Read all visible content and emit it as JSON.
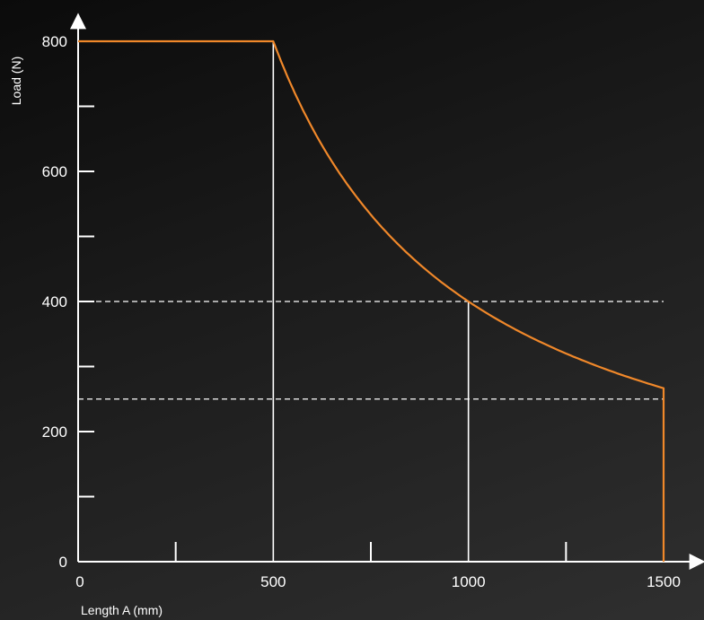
{
  "chart_data": {
    "type": "line",
    "title": "",
    "xlabel": "Length A (mm)",
    "ylabel": "Load (N)",
    "xlim": [
      0,
      1500
    ],
    "ylim": [
      0,
      800
    ],
    "x_ticks": [
      "0",
      "500",
      "1000",
      "1500"
    ],
    "y_ticks": [
      "0",
      "200",
      "400",
      "600",
      "800"
    ],
    "series": [
      {
        "x": [
          0,
          500,
          550,
          600,
          700,
          800,
          900,
          1000,
          1100,
          1200,
          1300,
          1400,
          1500,
          1500
        ],
        "y": [
          800,
          800,
          727,
          667,
          571,
          500,
          444,
          400,
          364,
          333,
          308,
          286,
          250,
          0
        ]
      }
    ],
    "vertical_reference_x": [
      500,
      1000
    ],
    "horizontal_reference_y": [
      400,
      250
    ],
    "grid": false,
    "colors": {
      "curve": "#f0882a",
      "axes": "#ffffff",
      "reference": "#ffffff",
      "background": "#1e1e1e"
    }
  }
}
